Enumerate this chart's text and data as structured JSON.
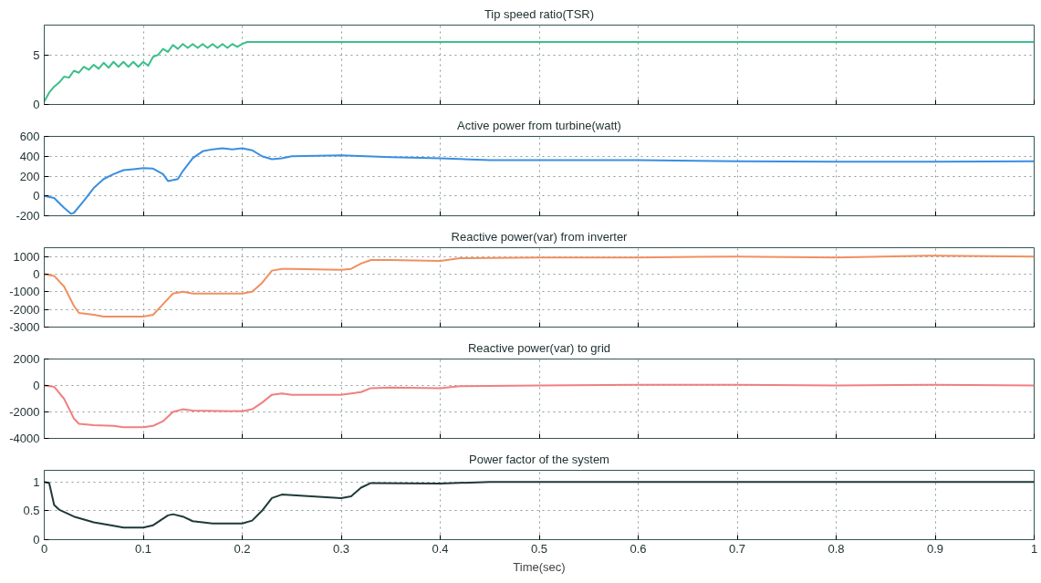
{
  "chart_data": [
    {
      "type": "line",
      "title": "Tip speed ratio(TSR)",
      "xlim": [
        0,
        1
      ],
      "xticks": [
        0,
        0.1,
        0.2,
        0.3,
        0.4,
        0.5,
        0.6,
        0.7,
        0.8,
        0.9,
        1
      ],
      "ylim": [
        0,
        8
      ],
      "yticks": [
        0,
        5
      ],
      "grid": true,
      "tick_labels": "y",
      "x": [
        0,
        0.005,
        0.01,
        0.015,
        0.02,
        0.025,
        0.03,
        0.035,
        0.04,
        0.045,
        0.05,
        0.055,
        0.06,
        0.065,
        0.07,
        0.075,
        0.08,
        0.085,
        0.09,
        0.095,
        0.1,
        0.105,
        0.11,
        0.115,
        0.12,
        0.125,
        0.13,
        0.135,
        0.14,
        0.145,
        0.15,
        0.155,
        0.16,
        0.165,
        0.17,
        0.175,
        0.18,
        0.185,
        0.19,
        0.195,
        0.2,
        0.205,
        0.25,
        0.3,
        0.35,
        0.4,
        0.45,
        0.5,
        0.55,
        0.6,
        0.65,
        0.7,
        0.75,
        0.8,
        0.85,
        0.9,
        0.95,
        1
      ],
      "series": [
        {
          "color": "#3cbf8a",
          "values": [
            0.3,
            1.2,
            1.8,
            2.2,
            2.8,
            2.7,
            3.4,
            3.2,
            3.8,
            3.5,
            4.0,
            3.6,
            4.2,
            3.7,
            4.3,
            3.8,
            4.3,
            3.8,
            4.3,
            3.8,
            4.3,
            3.9,
            4.8,
            5.0,
            5.6,
            5.3,
            6.0,
            5.6,
            6.1,
            5.7,
            6.1,
            5.7,
            6.1,
            5.7,
            6.1,
            5.7,
            6.1,
            5.7,
            6.1,
            5.8,
            6.1,
            6.3,
            6.3,
            6.3,
            6.3,
            6.3,
            6.3,
            6.3,
            6.3,
            6.3,
            6.3,
            6.3,
            6.3,
            6.3,
            6.3,
            6.3,
            6.3,
            6.3
          ]
        }
      ]
    },
    {
      "type": "line",
      "title": "Active power from turbine(watt)",
      "xlim": [
        0,
        1
      ],
      "xticks": [
        0,
        0.1,
        0.2,
        0.3,
        0.4,
        0.5,
        0.6,
        0.7,
        0.8,
        0.9,
        1
      ],
      "ylim": [
        -200,
        600
      ],
      "yticks": [
        -200,
        0,
        200,
        400,
        600
      ],
      "grid": true,
      "tick_labels": "y",
      "x": [
        0,
        0.01,
        0.02,
        0.027,
        0.03,
        0.04,
        0.05,
        0.06,
        0.07,
        0.08,
        0.09,
        0.1,
        0.11,
        0.12,
        0.125,
        0.135,
        0.14,
        0.15,
        0.16,
        0.17,
        0.18,
        0.19,
        0.2,
        0.21,
        0.22,
        0.23,
        0.24,
        0.25,
        0.3,
        0.35,
        0.4,
        0.45,
        0.5,
        0.6,
        0.7,
        0.8,
        0.9,
        1
      ],
      "series": [
        {
          "color": "#3a8fe0",
          "values": [
            0,
            -20,
            -120,
            -180,
            -170,
            -50,
            80,
            170,
            220,
            260,
            270,
            280,
            275,
            220,
            150,
            170,
            250,
            380,
            450,
            470,
            480,
            470,
            480,
            460,
            400,
            370,
            380,
            400,
            410,
            390,
            380,
            360,
            360,
            360,
            350,
            345,
            345,
            350
          ]
        }
      ]
    },
    {
      "type": "line",
      "title": "Reactive power(var) from inverter",
      "xlim": [
        0,
        1
      ],
      "xticks": [
        0,
        0.1,
        0.2,
        0.3,
        0.4,
        0.5,
        0.6,
        0.7,
        0.8,
        0.9,
        1
      ],
      "ylim": [
        -3000,
        1500
      ],
      "yticks": [
        -3000,
        -2000,
        -1000,
        0,
        1000
      ],
      "grid": true,
      "tick_labels": "y",
      "x": [
        0,
        0.01,
        0.02,
        0.03,
        0.035,
        0.05,
        0.06,
        0.1,
        0.11,
        0.12,
        0.13,
        0.14,
        0.15,
        0.2,
        0.21,
        0.22,
        0.23,
        0.24,
        0.25,
        0.3,
        0.31,
        0.32,
        0.33,
        0.35,
        0.4,
        0.42,
        0.5,
        0.6,
        0.7,
        0.8,
        0.9,
        1
      ],
      "series": [
        {
          "color": "#f09060",
          "values": [
            0,
            -100,
            -700,
            -1800,
            -2200,
            -2300,
            -2400,
            -2400,
            -2300,
            -1700,
            -1100,
            -1000,
            -1100,
            -1100,
            -1000,
            -500,
            200,
            300,
            300,
            250,
            300,
            600,
            800,
            800,
            750,
            900,
            950,
            950,
            1000,
            950,
            1050,
            1000
          ]
        }
      ]
    },
    {
      "type": "line",
      "title": "Reactive power(var) to grid",
      "xlim": [
        0,
        1
      ],
      "xticks": [
        0,
        0.1,
        0.2,
        0.3,
        0.4,
        0.5,
        0.6,
        0.7,
        0.8,
        0.9,
        1
      ],
      "ylim": [
        -4000,
        2000
      ],
      "yticks": [
        -4000,
        -2000,
        0,
        2000
      ],
      "grid": true,
      "tick_labels": "y",
      "x": [
        0,
        0.01,
        0.02,
        0.03,
        0.035,
        0.05,
        0.07,
        0.08,
        0.1,
        0.11,
        0.12,
        0.13,
        0.14,
        0.15,
        0.2,
        0.21,
        0.22,
        0.23,
        0.24,
        0.25,
        0.3,
        0.32,
        0.33,
        0.35,
        0.4,
        0.42,
        0.5,
        0.6,
        0.7,
        0.8,
        0.9,
        1
      ],
      "series": [
        {
          "color": "#f08080",
          "values": [
            0,
            -100,
            -1000,
            -2500,
            -2900,
            -3000,
            -3050,
            -3150,
            -3150,
            -3050,
            -2700,
            -2000,
            -1800,
            -1900,
            -1950,
            -1800,
            -1300,
            -700,
            -600,
            -700,
            -700,
            -500,
            -200,
            -150,
            -200,
            -50,
            0,
            50,
            50,
            0,
            50,
            0
          ]
        }
      ]
    },
    {
      "type": "line",
      "title": "Power factor of the system",
      "xlabel": "Time(sec)",
      "xlim": [
        0,
        1
      ],
      "xticks": [
        0,
        0.1,
        0.2,
        0.3,
        0.4,
        0.5,
        0.6,
        0.7,
        0.8,
        0.9,
        1
      ],
      "ylim": [
        0,
        1.2
      ],
      "yticks": [
        0,
        0.5,
        1
      ],
      "grid": true,
      "x": [
        0,
        0.005,
        0.01,
        0.015,
        0.03,
        0.05,
        0.07,
        0.08,
        0.1,
        0.11,
        0.125,
        0.13,
        0.14,
        0.15,
        0.17,
        0.2,
        0.21,
        0.22,
        0.23,
        0.24,
        0.3,
        0.31,
        0.32,
        0.33,
        0.4,
        0.45,
        0.6,
        1
      ],
      "series": [
        {
          "color": "#1e3a38",
          "values": [
            1,
            0.98,
            0.6,
            0.52,
            0.4,
            0.3,
            0.24,
            0.21,
            0.21,
            0.25,
            0.42,
            0.44,
            0.4,
            0.32,
            0.28,
            0.28,
            0.33,
            0.5,
            0.72,
            0.78,
            0.72,
            0.75,
            0.9,
            0.98,
            0.97,
            1.0,
            1.0,
            1.0
          ]
        }
      ]
    }
  ]
}
